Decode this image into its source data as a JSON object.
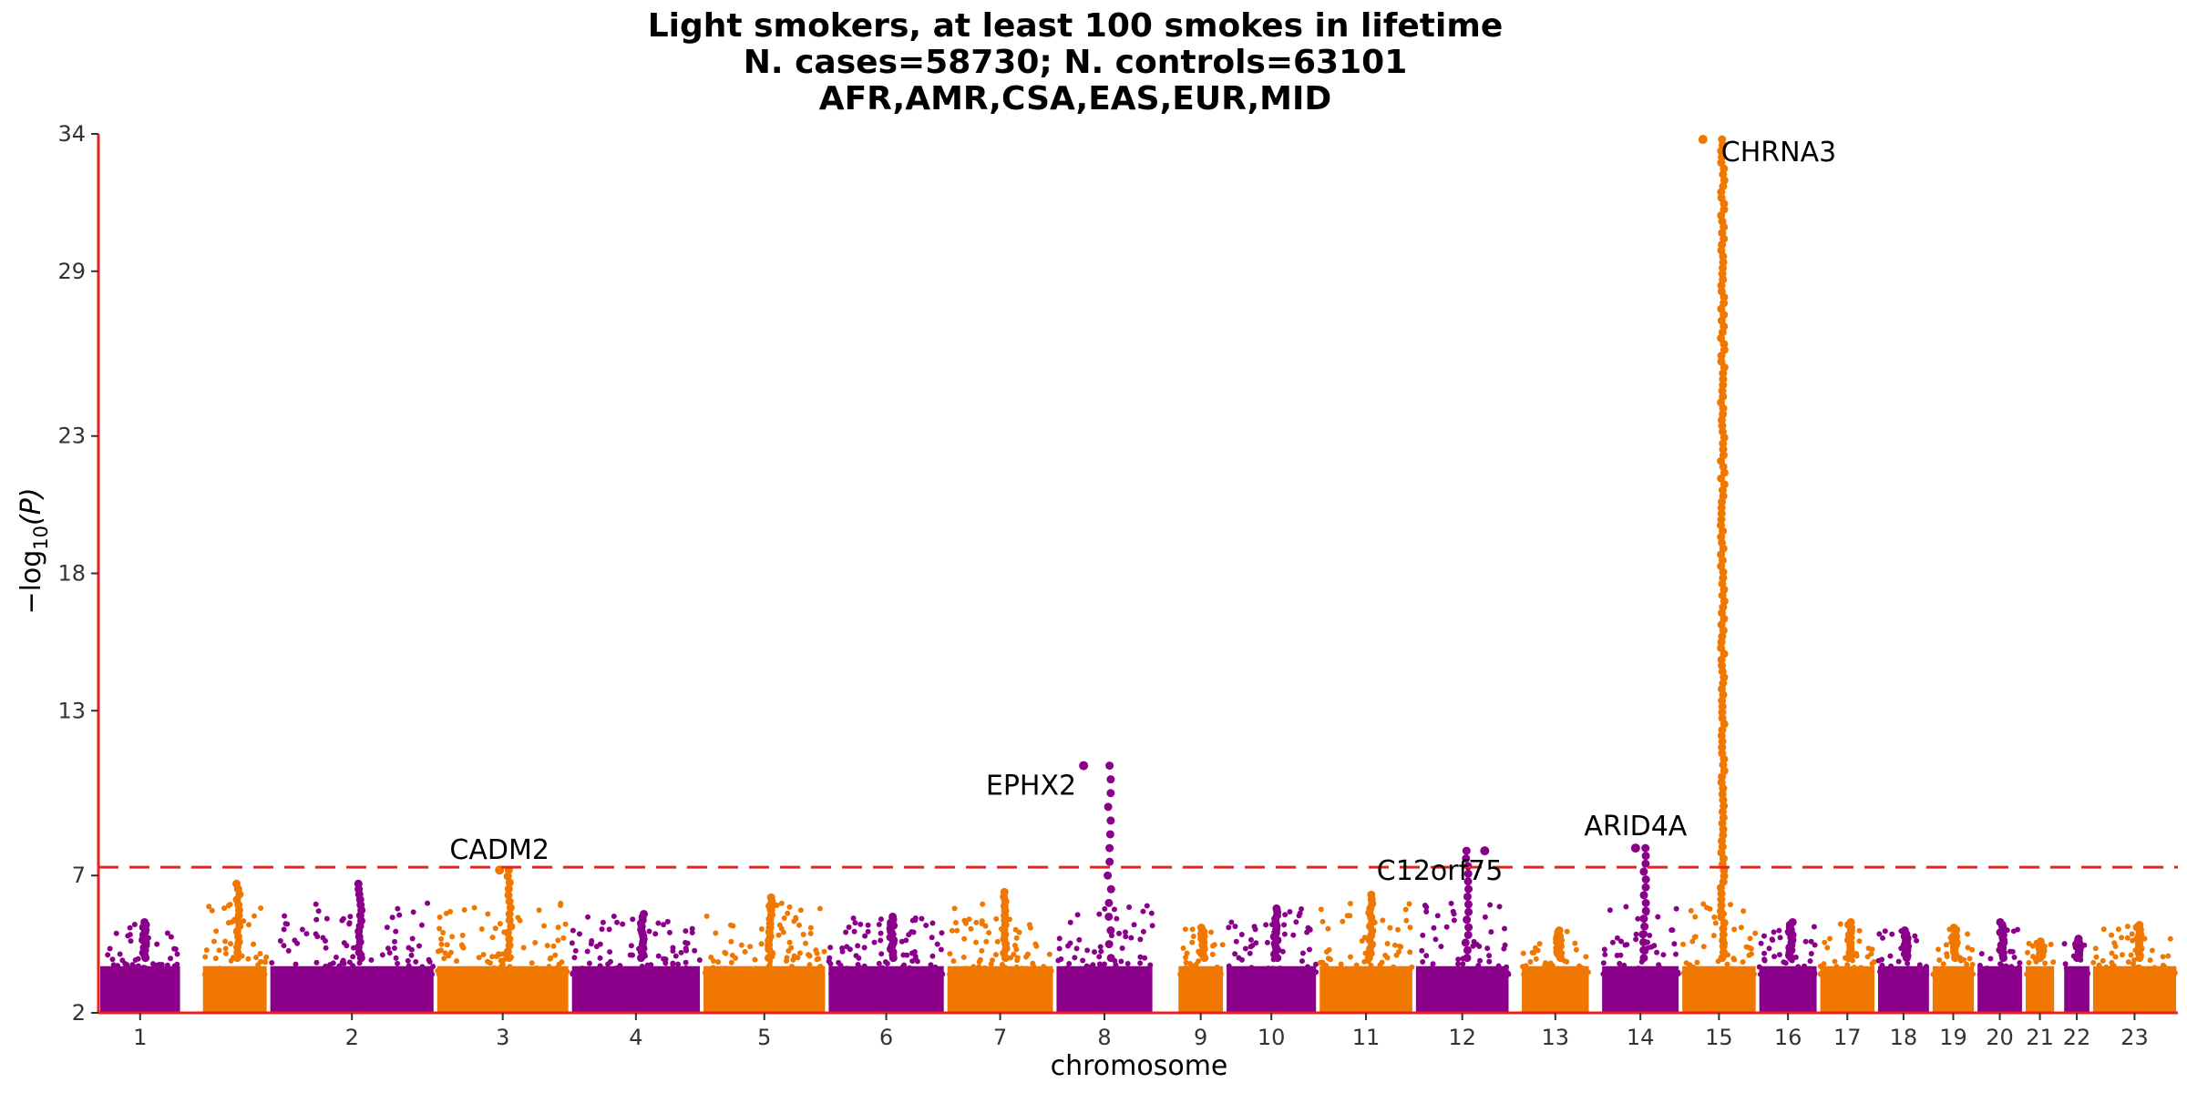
{
  "chart_data": {
    "type": "scatter",
    "subtype": "manhattan",
    "title_lines": [
      "Light smokers, at least 100 smokes in lifetime",
      "N. cases=58730; N. controls=63101",
      "AFR,AMR,CSA,EAS,EUR,MID"
    ],
    "xlabel": "chromosome",
    "ylabel_main": "−log",
    "ylabel_sub": "10",
    "ylabel_tail": "(P)",
    "ylim": [
      2,
      34
    ],
    "yticks": [
      "2",
      "7",
      "13",
      "18",
      "23",
      "29",
      "34"
    ],
    "significance_threshold": 7.3,
    "threshold_color": "#e8231f",
    "axis_color": "#e8231f",
    "colors": [
      "#8b008b",
      "#f07800"
    ],
    "grid": false,
    "chromosomes": [
      {
        "label": "1",
        "range": [
          0.0,
          2.6
        ],
        "peak": 5.3
      },
      {
        "label": "",
        "range": [
          3.2,
          5.3
        ],
        "peak": 6.7
      },
      {
        "label": "2",
        "range": [
          5.3,
          10.5
        ],
        "peak": 6.7
      },
      {
        "label": "3",
        "range": [
          10.5,
          14.7
        ],
        "peak": 7.2
      },
      {
        "label": "4",
        "range": [
          14.7,
          18.8
        ],
        "peak": 5.6
      },
      {
        "label": "5",
        "range": [
          18.8,
          22.7
        ],
        "peak": 6.2
      },
      {
        "label": "6",
        "range": [
          22.7,
          26.4
        ],
        "peak": 5.5
      },
      {
        "label": "7",
        "range": [
          26.4,
          29.8
        ],
        "peak": 6.4
      },
      {
        "label": "8",
        "range": [
          29.8,
          32.9
        ],
        "peak": 11.0
      },
      {
        "label": "9",
        "range": [
          33.6,
          35.1
        ],
        "peak": 5.1
      },
      {
        "label": "10",
        "range": [
          35.1,
          38.0
        ],
        "peak": 5.8
      },
      {
        "label": "11",
        "range": [
          38.0,
          41.0
        ],
        "peak": 6.3
      },
      {
        "label": "12",
        "range": [
          41.0,
          44.0
        ],
        "peak": 7.9
      },
      {
        "label": "13",
        "range": [
          44.3,
          46.5
        ],
        "peak": 5.0
      },
      {
        "label": "14",
        "range": [
          46.8,
          49.3
        ],
        "peak": 8.0
      },
      {
        "label": "15",
        "range": [
          49.3,
          51.7
        ],
        "peak": 33.8
      },
      {
        "label": "16",
        "range": [
          51.7,
          53.6
        ],
        "peak": 5.3
      },
      {
        "label": "17",
        "range": [
          53.6,
          55.4
        ],
        "peak": 5.3
      },
      {
        "label": "18",
        "range": [
          55.4,
          57.1
        ],
        "peak": 5.0
      },
      {
        "label": "19",
        "range": [
          57.1,
          58.5
        ],
        "peak": 5.1
      },
      {
        "label": "20",
        "range": [
          58.5,
          60.0
        ],
        "peak": 5.3
      },
      {
        "label": "21",
        "range": [
          60.0,
          61.0
        ],
        "peak": 4.6
      },
      {
        "label": "22",
        "range": [
          61.2,
          62.1
        ],
        "peak": 4.7
      },
      {
        "label": "23",
        "range": [
          62.1,
          64.8
        ],
        "peak": 5.2
      }
    ],
    "annotations": [
      {
        "gene": "CADM2",
        "chromosome": "3",
        "pos": 12.5,
        "p": 7.2
      },
      {
        "gene": "EPHX2",
        "chromosome": "8",
        "pos": 30.7,
        "p": 11.0
      },
      {
        "gene": "C12orf75",
        "chromosome": "12",
        "pos": 43.2,
        "p": 7.9
      },
      {
        "gene": "ARID4A",
        "chromosome": "14",
        "pos": 47.9,
        "p": 8.0
      },
      {
        "gene": "CHRNA3",
        "chromosome": "15",
        "pos": 50.0,
        "p": 33.8
      }
    ]
  }
}
